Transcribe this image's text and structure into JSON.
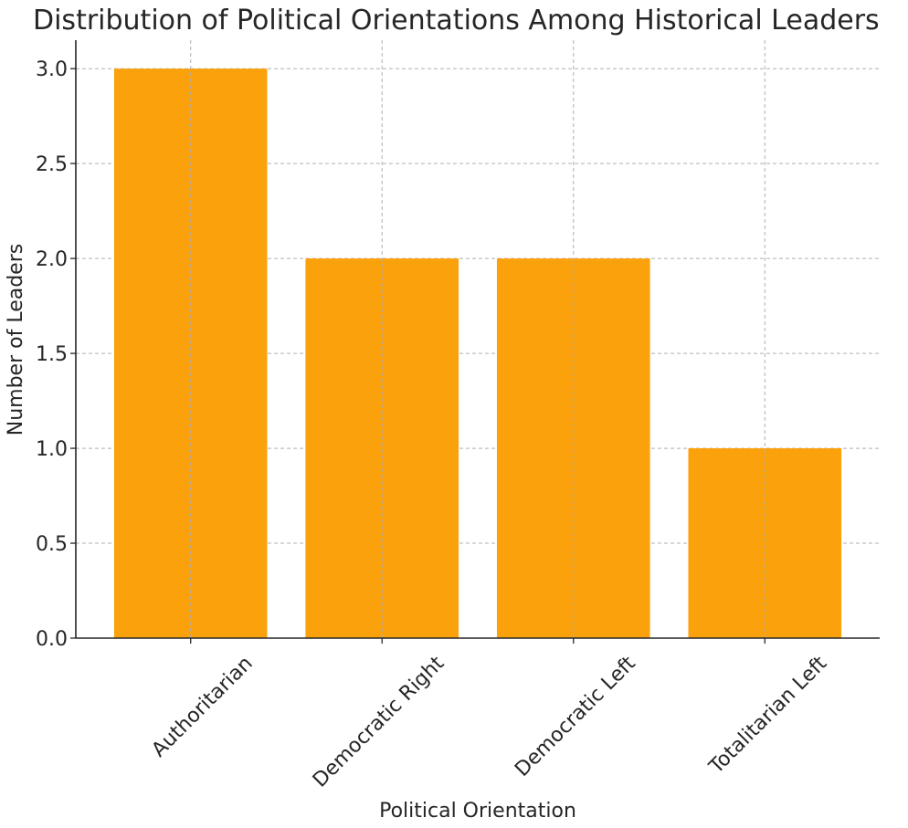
{
  "chart_data": {
    "type": "bar",
    "title": "Distribution of Political Orientations Among Historical Leaders",
    "xlabel": "Political Orientation",
    "ylabel": "Number of Leaders",
    "categories": [
      "Authoritarian",
      "Democratic Right",
      "Democratic Left",
      "Totalitarian Left"
    ],
    "values": [
      3,
      2,
      2,
      1
    ],
    "ylim": [
      0,
      3.15
    ],
    "yticks": [
      "0.0",
      "0.5",
      "1.0",
      "1.5",
      "2.0",
      "2.5",
      "3.0"
    ],
    "grid": true,
    "bar_color": "#FBA10B",
    "axis_color": "#262626",
    "grid_color": "#B0B0B0"
  }
}
